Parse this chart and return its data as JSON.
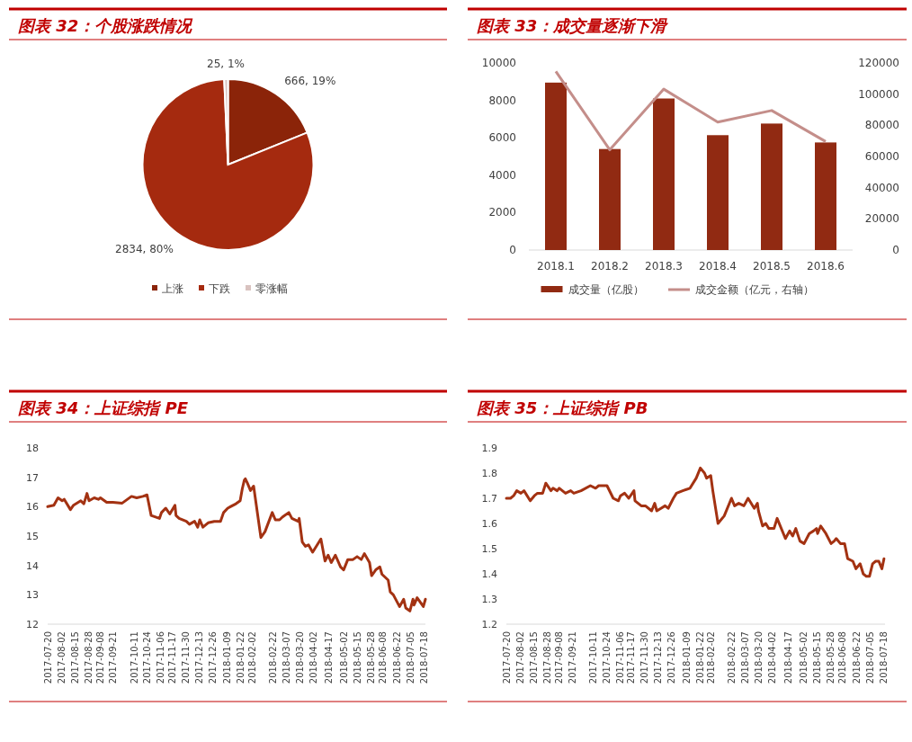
{
  "chart_data": [
    {
      "type": "pie",
      "title": "图表 32：个股涨跌情况",
      "categories": [
        "上涨",
        "下跌",
        "零涨幅"
      ],
      "values": [
        666,
        2834,
        25
      ],
      "colors": [
        "#8b2409",
        "#a52a0f",
        "#d9c3c0"
      ],
      "value_labels": [
        "666, 19%",
        "2834, 80%",
        "25, 1%"
      ],
      "legend": "bottom"
    },
    {
      "type": "bar",
      "title": "图表 33：成交量逐渐下滑",
      "categories": [
        "2018.1",
        "2018.2",
        "2018.3",
        "2018.4",
        "2018.5",
        "2018.6"
      ],
      "series": [
        {
          "name": "成交量（亿股）",
          "type": "bar",
          "color": "#912a12",
          "values": [
            8950,
            5400,
            8100,
            6140,
            6760,
            5750
          ]
        },
        {
          "name": "成交金额（亿元，右轴）",
          "type": "line",
          "axis": "y2",
          "color": "#c48e8a",
          "values": [
            114600,
            64300,
            103200,
            82100,
            89500,
            69600
          ]
        }
      ],
      "ylim": [
        0,
        10000
      ],
      "yticks": [
        0,
        2000,
        4000,
        6000,
        8000,
        10000
      ],
      "y2lim": [
        0,
        120000
      ],
      "y2ticks": [
        0,
        20000,
        40000,
        60000,
        80000,
        100000,
        120000
      ],
      "legend": "bottom"
    },
    {
      "type": "line",
      "title": "图表 34：上证综指 PE",
      "color": "#a33212",
      "x": [
        "2017-07-20",
        "2017-07-26",
        "2017-07-30",
        "2017-08-03",
        "2017-08-05",
        "2017-08-11",
        "2017-08-14",
        "2017-08-21",
        "2017-08-24",
        "2017-08-27",
        "2017-08-29",
        "2017-09-03",
        "2017-09-07",
        "2017-09-09",
        "2017-09-15",
        "2017-09-21",
        "2017-09-30",
        "2017-10-09",
        "2017-10-14",
        "2017-10-20",
        "2017-10-24",
        "2017-10-28",
        "2017-11-05",
        "2017-11-07",
        "2017-11-11",
        "2017-11-15",
        "2017-11-20",
        "2017-11-21",
        "2017-11-24",
        "2017-12-01",
        "2017-12-04",
        "2017-12-09",
        "2017-12-12",
        "2017-12-14",
        "2017-12-17",
        "2017-12-22",
        "2017-12-28",
        "2018-01-03",
        "2018-01-06",
        "2018-01-10",
        "2018-01-18",
        "2018-01-22",
        "2018-01-24",
        "2018-01-26",
        "2018-01-27",
        "2018-01-29",
        "2018-02-01",
        "2018-02-04",
        "2018-02-11",
        "2018-02-15",
        "2018-02-22",
        "2018-02-25",
        "2018-03-01",
        "2018-03-04",
        "2018-03-10",
        "2018-03-13",
        "2018-03-19",
        "2018-03-20",
        "2018-03-23",
        "2018-03-26",
        "2018-03-29",
        "2018-04-02",
        "2018-04-10",
        "2018-04-14",
        "2018-04-17",
        "2018-04-20",
        "2018-04-24",
        "2018-04-29",
        "2018-05-02",
        "2018-05-06",
        "2018-05-11",
        "2018-05-15",
        "2018-05-19",
        "2018-05-22",
        "2018-05-27",
        "2018-05-29",
        "2018-06-02",
        "2018-06-06",
        "2018-06-08",
        "2018-06-14",
        "2018-06-16",
        "2018-06-19",
        "2018-06-25",
        "2018-06-29",
        "2018-07-01",
        "2018-07-05",
        "2018-07-08",
        "2018-07-09",
        "2018-07-12",
        "2018-07-18",
        "2018-07-20"
      ],
      "values": [
        16.0,
        16.05,
        16.3,
        16.2,
        16.25,
        15.9,
        16.05,
        16.2,
        16.1,
        16.45,
        16.2,
        16.3,
        16.25,
        16.3,
        16.15,
        16.15,
        16.12,
        16.35,
        16.3,
        16.35,
        16.4,
        15.7,
        15.6,
        15.8,
        15.95,
        15.75,
        16.05,
        15.7,
        15.6,
        15.5,
        15.4,
        15.5,
        15.3,
        15.55,
        15.3,
        15.45,
        15.5,
        15.5,
        15.8,
        15.95,
        16.1,
        16.2,
        16.6,
        16.9,
        16.95,
        16.8,
        16.55,
        16.7,
        14.95,
        15.15,
        15.8,
        15.55,
        15.55,
        15.65,
        15.8,
        15.6,
        15.5,
        15.6,
        14.8,
        14.65,
        14.7,
        14.45,
        14.9,
        14.15,
        14.35,
        14.1,
        14.35,
        13.95,
        13.85,
        14.2,
        14.2,
        14.3,
        14.2,
        14.4,
        14.1,
        13.65,
        13.85,
        13.95,
        13.7,
        13.5,
        13.1,
        13.0,
        12.6,
        12.85,
        12.55,
        12.45,
        12.85,
        12.65,
        12.9,
        12.6,
        12.85
      ],
      "xlim": [
        "2017-07-20",
        "2018-07-20"
      ],
      "ylim": [
        12,
        18
      ],
      "yticks": [
        12,
        13,
        14,
        15,
        16,
        17,
        18
      ],
      "xticks": [
        "2017-07-20",
        "2017-08-02",
        "2017-08-15",
        "2017-08-28",
        "2017-09-08",
        "2017-09-21",
        "2017-10-11",
        "2017-10-24",
        "2017-11-06",
        "2017-11-17",
        "2017-11-30",
        "2017-12-13",
        "2017-12-26",
        "2018-01-09",
        "2018-01-22",
        "2018-02-02",
        "2018-02-22",
        "2018-03-07",
        "2018-03-20",
        "2018-04-02",
        "2018-04-17",
        "2018-05-02",
        "2018-05-15",
        "2018-05-28",
        "2018-06-08",
        "2018-06-22",
        "2018-07-05",
        "2018-07-18"
      ]
    },
    {
      "type": "line",
      "title": "图表 35：上证综指 PB",
      "color": "#a33212",
      "x": [
        "2017-07-20",
        "2017-07-24",
        "2017-07-27",
        "2017-07-30",
        "2017-08-03",
        "2017-08-06",
        "2017-08-12",
        "2017-08-16",
        "2017-08-19",
        "2017-08-24",
        "2017-08-27",
        "2017-09-01",
        "2017-09-03",
        "2017-09-07",
        "2017-09-09",
        "2017-09-15",
        "2017-09-20",
        "2017-09-23",
        "2017-09-30",
        "2017-10-09",
        "2017-10-14",
        "2017-10-17",
        "2017-10-25",
        "2017-10-31",
        "2017-11-05",
        "2017-11-07",
        "2017-11-11",
        "2017-11-15",
        "2017-11-20",
        "2017-11-21",
        "2017-11-27",
        "2017-12-01",
        "2017-12-07",
        "2017-12-10",
        "2017-12-12",
        "2017-12-16",
        "2017-12-20",
        "2017-12-23",
        "2017-12-28",
        "2017-12-31",
        "2018-01-06",
        "2018-01-13",
        "2018-01-19",
        "2018-01-23",
        "2018-01-27",
        "2018-01-29",
        "2018-02-02",
        "2018-02-04",
        "2018-02-09",
        "2018-02-15",
        "2018-02-22",
        "2018-02-25",
        "2018-03-01",
        "2018-03-06",
        "2018-03-10",
        "2018-03-16",
        "2018-03-19",
        "2018-03-20",
        "2018-03-24",
        "2018-03-27",
        "2018-03-30",
        "2018-04-04",
        "2018-04-07",
        "2018-04-15",
        "2018-04-19",
        "2018-04-22",
        "2018-04-25",
        "2018-04-29",
        "2018-05-03",
        "2018-05-08",
        "2018-05-12",
        "2018-05-15",
        "2018-05-16",
        "2018-05-19",
        "2018-05-24",
        "2018-05-29",
        "2018-06-01",
        "2018-06-03",
        "2018-06-07",
        "2018-06-11",
        "2018-06-14",
        "2018-06-19",
        "2018-06-22",
        "2018-06-26",
        "2018-06-29",
        "2018-07-02",
        "2018-07-05",
        "2018-07-08",
        "2018-07-11",
        "2018-07-14",
        "2018-07-17",
        "2018-07-19"
      ],
      "values": [
        1.7,
        1.7,
        1.71,
        1.73,
        1.72,
        1.73,
        1.69,
        1.71,
        1.72,
        1.72,
        1.76,
        1.73,
        1.74,
        1.73,
        1.74,
        1.72,
        1.73,
        1.72,
        1.73,
        1.75,
        1.74,
        1.75,
        1.75,
        1.7,
        1.69,
        1.71,
        1.72,
        1.7,
        1.73,
        1.69,
        1.67,
        1.67,
        1.65,
        1.68,
        1.65,
        1.66,
        1.67,
        1.66,
        1.7,
        1.72,
        1.73,
        1.74,
        1.78,
        1.82,
        1.8,
        1.78,
        1.79,
        1.73,
        1.6,
        1.63,
        1.7,
        1.67,
        1.68,
        1.67,
        1.7,
        1.66,
        1.68,
        1.65,
        1.59,
        1.6,
        1.58,
        1.58,
        1.62,
        1.54,
        1.57,
        1.55,
        1.58,
        1.53,
        1.52,
        1.56,
        1.57,
        1.58,
        1.56,
        1.59,
        1.56,
        1.52,
        1.53,
        1.54,
        1.52,
        1.52,
        1.46,
        1.45,
        1.42,
        1.44,
        1.4,
        1.39,
        1.39,
        1.44,
        1.45,
        1.45,
        1.42,
        1.46
      ],
      "xlim": [
        "2017-07-20",
        "2018-07-20"
      ],
      "ylim": [
        1.2,
        1.9
      ],
      "yticks": [
        1.2,
        1.3,
        1.4,
        1.5,
        1.6,
        1.7,
        1.8,
        1.9
      ],
      "xticks": [
        "2017-07-20",
        "2017-08-02",
        "2017-08-15",
        "2017-08-28",
        "2017-09-08",
        "2017-09-21",
        "2017-10-11",
        "2017-10-24",
        "2017-11-06",
        "2017-11-17",
        "2017-11-30",
        "2017-12-13",
        "2017-12-26",
        "2018-01-09",
        "2018-01-22",
        "2018-02-02",
        "2018-02-22",
        "2018-03-07",
        "2018-03-20",
        "2018-04-02",
        "2018-04-17",
        "2018-05-02",
        "2018-05-15",
        "2018-05-28",
        "2018-06-08",
        "2018-06-22",
        "2018-07-05",
        "2018-07-18"
      ]
    }
  ]
}
